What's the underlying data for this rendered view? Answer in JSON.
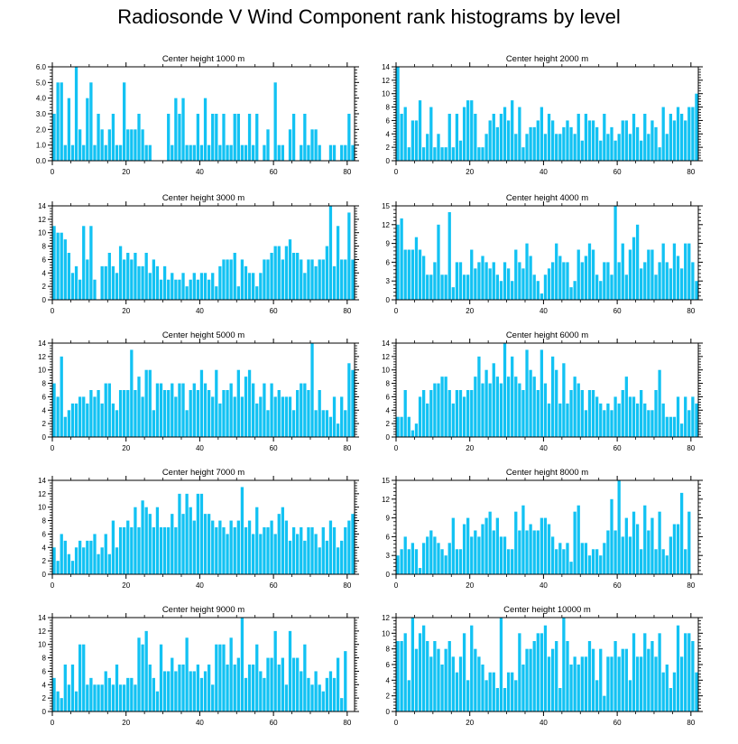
{
  "title": "Radiosonde V Wind Component rank histograms by level",
  "colors": {
    "bar": "#12c2f3",
    "bar_edge": "#0aa8d8",
    "axis": "#000000",
    "background": "#ffffff"
  },
  "chart_data": [
    {
      "type": "bar",
      "title": "Center height 1000 m",
      "xlim": [
        0,
        82
      ],
      "ylim": [
        0,
        6
      ],
      "xticks": [
        0,
        20,
        40,
        60,
        80
      ],
      "yticks": [
        0,
        1,
        2,
        3,
        4,
        5,
        6
      ],
      "ytick_labels": [
        "0.0",
        "1.0",
        "2.0",
        "3.0",
        "4.0",
        "5.0",
        "6.0"
      ],
      "values": [
        3,
        5,
        5,
        1,
        4,
        1,
        6,
        2,
        1,
        4,
        5,
        1,
        3,
        2,
        1,
        2,
        3,
        1,
        1,
        5,
        2,
        2,
        2,
        3,
        2,
        1,
        1,
        0,
        0,
        0,
        0,
        3,
        1,
        4,
        3,
        4,
        1,
        1,
        1,
        3,
        1,
        4,
        1,
        3,
        3,
        1,
        3,
        1,
        1,
        3,
        3,
        1,
        1,
        3,
        1,
        3,
        0,
        1,
        2,
        0,
        5,
        1,
        1,
        0,
        2,
        3,
        0,
        1,
        3,
        1,
        2,
        2,
        1,
        0,
        0,
        1,
        1,
        0,
        1,
        1,
        3,
        1
      ]
    },
    {
      "type": "bar",
      "title": "Center height 2000 m",
      "xlim": [
        0,
        82
      ],
      "ylim": [
        0,
        14
      ],
      "xticks": [
        0,
        20,
        40,
        60,
        80
      ],
      "yticks": [
        0,
        2,
        4,
        6,
        8,
        10,
        12,
        14
      ],
      "ytick_labels": [
        "0",
        "2",
        "4",
        "6",
        "8",
        "10",
        "12",
        "14"
      ],
      "values": [
        14,
        7,
        8,
        2,
        6,
        6,
        9,
        2,
        4,
        8,
        2,
        4,
        2,
        2,
        7,
        2,
        7,
        3,
        8,
        9,
        9,
        7,
        2,
        2,
        4,
        6,
        7,
        5,
        7,
        8,
        6,
        9,
        4,
        8,
        2,
        4,
        5,
        5,
        6,
        8,
        4,
        7,
        6,
        4,
        4,
        5,
        6,
        5,
        4,
        7,
        3,
        7,
        6,
        6,
        5,
        3,
        7,
        4,
        5,
        3,
        4,
        6,
        6,
        4,
        7,
        5,
        3,
        7,
        4,
        6,
        5,
        2,
        8,
        4,
        7,
        6,
        8,
        7,
        6,
        8,
        8,
        10
      ]
    },
    {
      "type": "bar",
      "title": "Center height 3000 m",
      "xlim": [
        0,
        82
      ],
      "ylim": [
        0,
        14
      ],
      "xticks": [
        0,
        20,
        40,
        60,
        80
      ],
      "yticks": [
        0,
        2,
        4,
        6,
        8,
        10,
        12,
        14
      ],
      "ytick_labels": [
        "0",
        "2",
        "4",
        "6",
        "8",
        "10",
        "12",
        "14"
      ],
      "values": [
        11,
        10,
        10,
        9,
        7,
        4,
        5,
        3,
        11,
        6,
        11,
        3,
        0,
        5,
        5,
        7,
        5,
        4,
        8,
        6,
        7,
        6,
        7,
        5,
        5,
        7,
        4,
        6,
        5,
        3,
        5,
        3,
        4,
        3,
        3,
        4,
        2,
        3,
        4,
        3,
        4,
        4,
        3,
        4,
        2,
        5,
        6,
        6,
        6,
        7,
        2,
        6,
        5,
        4,
        4,
        2,
        4,
        6,
        6,
        7,
        8,
        8,
        6,
        8,
        9,
        7,
        7,
        6,
        4,
        6,
        6,
        5,
        6,
        6,
        8,
        14,
        5,
        11,
        6,
        6,
        13,
        6
      ]
    },
    {
      "type": "bar",
      "title": "Center height 4000 m",
      "xlim": [
        0,
        82
      ],
      "ylim": [
        0,
        15
      ],
      "xticks": [
        0,
        20,
        40,
        60,
        80
      ],
      "yticks": [
        0,
        3,
        6,
        9,
        12,
        15
      ],
      "ytick_labels": [
        "0",
        "3",
        "6",
        "9",
        "12",
        "15"
      ],
      "values": [
        12,
        13,
        8,
        8,
        8,
        10,
        8,
        7,
        4,
        4,
        6,
        12,
        4,
        4,
        14,
        2,
        6,
        6,
        4,
        4,
        8,
        5,
        6,
        7,
        6,
        5,
        6,
        4,
        3,
        6,
        5,
        3,
        8,
        6,
        5,
        9,
        7,
        4,
        3,
        1,
        4,
        5,
        6,
        9,
        7,
        6,
        6,
        2,
        3,
        8,
        6,
        7,
        9,
        8,
        4,
        3,
        6,
        6,
        4,
        15,
        6,
        9,
        4,
        8,
        10,
        12,
        5,
        6,
        8,
        8,
        4,
        6,
        9,
        6,
        5,
        9,
        7,
        5,
        9,
        9,
        6,
        3
      ]
    },
    {
      "type": "bar",
      "title": "Center height 5000 m",
      "xlim": [
        0,
        82
      ],
      "ylim": [
        0,
        14
      ],
      "xticks": [
        0,
        20,
        40,
        60,
        80
      ],
      "yticks": [
        0,
        2,
        4,
        6,
        8,
        10,
        12,
        14
      ],
      "ytick_labels": [
        "0",
        "2",
        "4",
        "6",
        "8",
        "10",
        "12",
        "14"
      ],
      "values": [
        8,
        6,
        12,
        3,
        4,
        5,
        5,
        6,
        6,
        5,
        7,
        6,
        7,
        5,
        8,
        8,
        5,
        4,
        7,
        7,
        7,
        13,
        7,
        9,
        6,
        10,
        10,
        4,
        8,
        8,
        7,
        7,
        8,
        6,
        8,
        8,
        4,
        7,
        8,
        7,
        10,
        8,
        7,
        6,
        10,
        5,
        7,
        7,
        8,
        6,
        10,
        6,
        9,
        10,
        8,
        5,
        6,
        8,
        4,
        8,
        6,
        7,
        6,
        6,
        6,
        4,
        7,
        8,
        8,
        7,
        14,
        4,
        7,
        4,
        4,
        3,
        6,
        2,
        6,
        4,
        11,
        10
      ]
    },
    {
      "type": "bar",
      "title": "Center height 6000 m",
      "xlim": [
        0,
        82
      ],
      "ylim": [
        0,
        14
      ],
      "xticks": [
        0,
        20,
        40,
        60,
        80
      ],
      "yticks": [
        0,
        2,
        4,
        6,
        8,
        10,
        12,
        14
      ],
      "ytick_labels": [
        "0",
        "2",
        "4",
        "6",
        "8",
        "10",
        "12",
        "14"
      ],
      "values": [
        3,
        3,
        7,
        3,
        1,
        2,
        6,
        7,
        5,
        7,
        8,
        8,
        9,
        9,
        7,
        5,
        7,
        7,
        6,
        7,
        7,
        9,
        12,
        8,
        10,
        8,
        11,
        9,
        8,
        14,
        9,
        12,
        9,
        8,
        7,
        13,
        10,
        9,
        7,
        13,
        8,
        5,
        12,
        10,
        5,
        11,
        5,
        7,
        9,
        8,
        7,
        4,
        7,
        7,
        6,
        5,
        4,
        5,
        4,
        6,
        5,
        7,
        9,
        6,
        6,
        5,
        7,
        5,
        4,
        4,
        7,
        10,
        5,
        3,
        3,
        3,
        6,
        2,
        6,
        4,
        6,
        5
      ]
    },
    {
      "type": "bar",
      "title": "Center height 7000 m",
      "xlim": [
        0,
        82
      ],
      "ylim": [
        0,
        14
      ],
      "xticks": [
        0,
        20,
        40,
        60,
        80
      ],
      "yticks": [
        0,
        2,
        4,
        6,
        8,
        10,
        12,
        14
      ],
      "ytick_labels": [
        "0",
        "2",
        "4",
        "6",
        "8",
        "10",
        "12",
        "14"
      ],
      "values": [
        4,
        2,
        6,
        5,
        3,
        2,
        4,
        5,
        4,
        5,
        5,
        6,
        3,
        4,
        6,
        3,
        8,
        4,
        7,
        7,
        8,
        7,
        10,
        7,
        11,
        10,
        9,
        7,
        10,
        7,
        7,
        7,
        9,
        7,
        12,
        9,
        12,
        10,
        8,
        12,
        12,
        9,
        9,
        8,
        7,
        8,
        7,
        6,
        8,
        7,
        8,
        13,
        7,
        8,
        6,
        10,
        6,
        7,
        7,
        8,
        6,
        9,
        10,
        8,
        5,
        7,
        6,
        7,
        5,
        7,
        7,
        6,
        4,
        7,
        5,
        8,
        7,
        4,
        5,
        7,
        8,
        9
      ]
    },
    {
      "type": "bar",
      "title": "Center height 8000 m",
      "xlim": [
        0,
        82
      ],
      "ylim": [
        0,
        15
      ],
      "xticks": [
        0,
        20,
        40,
        60,
        80
      ],
      "yticks": [
        0,
        3,
        6,
        9,
        12,
        15
      ],
      "ytick_labels": [
        "0",
        "3",
        "6",
        "9",
        "12",
        "15"
      ],
      "values": [
        3,
        4,
        6,
        4,
        5,
        4,
        1,
        5,
        6,
        7,
        6,
        5,
        4,
        3,
        5,
        9,
        4,
        4,
        8,
        9,
        6,
        7,
        6,
        8,
        9,
        10,
        7,
        9,
        6,
        6,
        4,
        4,
        10,
        7,
        11,
        7,
        8,
        7,
        7,
        9,
        9,
        8,
        6,
        4,
        5,
        4,
        5,
        2,
        10,
        11,
        5,
        5,
        3,
        4,
        4,
        3,
        5,
        7,
        12,
        7,
        15,
        6,
        9,
        6,
        10,
        8,
        4,
        11,
        7,
        9,
        4,
        10,
        4,
        3,
        6,
        8,
        8,
        13,
        4,
        10
      ]
    },
    {
      "type": "bar",
      "title": "Center height 9000 m",
      "xlim": [
        0,
        82
      ],
      "ylim": [
        0,
        14
      ],
      "xticks": [
        0,
        20,
        40,
        60,
        80
      ],
      "yticks": [
        0,
        2,
        4,
        6,
        8,
        10,
        12,
        14
      ],
      "ytick_labels": [
        "0",
        "2",
        "4",
        "6",
        "8",
        "10",
        "12",
        "14"
      ],
      "values": [
        5,
        3,
        2,
        7,
        4,
        7,
        3,
        10,
        10,
        4,
        5,
        4,
        4,
        4,
        6,
        5,
        4,
        7,
        4,
        4,
        5,
        5,
        4,
        11,
        10,
        12,
        7,
        5,
        3,
        10,
        6,
        6,
        8,
        6,
        7,
        7,
        11,
        6,
        6,
        7,
        5,
        6,
        7,
        4,
        10,
        10,
        10,
        7,
        11,
        7,
        8,
        14,
        5,
        7,
        7,
        10,
        6,
        5,
        8,
        8,
        12,
        7,
        8,
        4,
        12,
        8,
        8,
        6,
        10,
        5,
        4,
        6,
        4,
        3,
        5,
        6,
        5,
        8,
        2,
        9
      ]
    },
    {
      "type": "bar",
      "title": "Center height 10000 m",
      "xlim": [
        0,
        82
      ],
      "ylim": [
        0,
        12
      ],
      "xticks": [
        0,
        20,
        40,
        60,
        80
      ],
      "yticks": [
        0,
        2,
        4,
        6,
        8,
        10,
        12
      ],
      "ytick_labels": [
        "0",
        "2",
        "4",
        "6",
        "8",
        "10",
        "12"
      ],
      "values": [
        9,
        9,
        10,
        4,
        12,
        8,
        10,
        11,
        9,
        7,
        9,
        8,
        6,
        8,
        9,
        7,
        5,
        7,
        10,
        4,
        11,
        8,
        7,
        6,
        4,
        5,
        5,
        3,
        12,
        3,
        5,
        5,
        4,
        10,
        6,
        8,
        8,
        9,
        10,
        10,
        11,
        7,
        8,
        9,
        3,
        12,
        9,
        6,
        7,
        6,
        7,
        7,
        9,
        8,
        4,
        8,
        2,
        7,
        7,
        9,
        7,
        8,
        8,
        4,
        10,
        7,
        7,
        10,
        8,
        9,
        7,
        10,
        5,
        6,
        3,
        5,
        11,
        7,
        10,
        10,
        9,
        5
      ]
    }
  ]
}
